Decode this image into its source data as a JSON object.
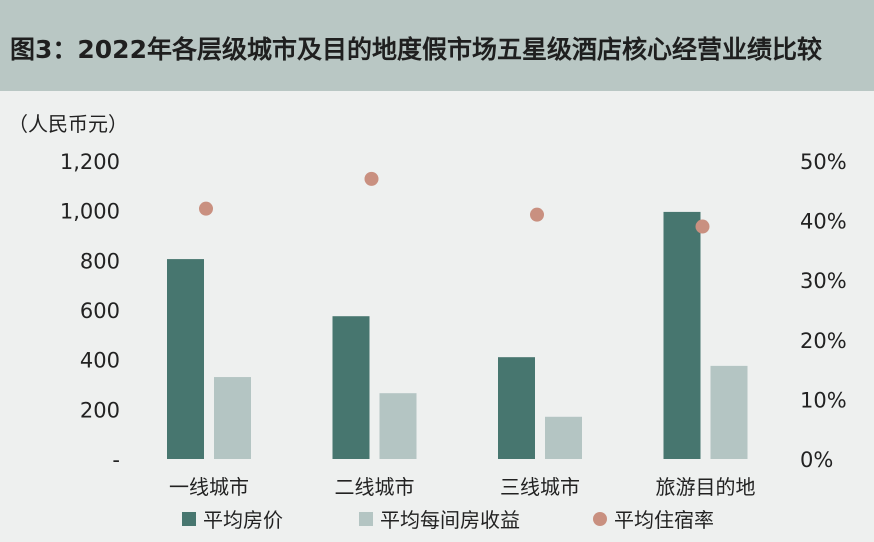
{
  "title": "图3：2022年各层级城市及目的地度假市场五星级酒店核心经营业绩比较",
  "unit_label": "（人民币元）",
  "chart_data": {
    "type": "bar",
    "categories": [
      "一线城市",
      "二线城市",
      "三线城市",
      "旅游目的地"
    ],
    "series": [
      {
        "name": "平均房价",
        "type": "bar",
        "axis": "left",
        "color": "#47766f",
        "values": [
          805,
          575,
          410,
          995
        ]
      },
      {
        "name": "平均每间房收益",
        "type": "bar",
        "axis": "left",
        "color": "#b4c5c3",
        "values": [
          330,
          265,
          170,
          375
        ]
      },
      {
        "name": "平均住宿率",
        "type": "scatter",
        "axis": "right",
        "color": "#c99080",
        "values": [
          42,
          47,
          41,
          39
        ]
      }
    ],
    "y_left": {
      "ticks": [
        0,
        200,
        400,
        600,
        800,
        1000,
        1200
      ],
      "tick_labels": [
        "-",
        "200",
        "400",
        "600",
        "800",
        "1,000",
        "1,200"
      ],
      "ylim": [
        0,
        1200
      ]
    },
    "y_right": {
      "ticks": [
        0,
        10,
        20,
        30,
        40,
        50
      ],
      "tick_labels": [
        "0%",
        "10%",
        "20%",
        "30%",
        "40%",
        "50%"
      ],
      "ylim": [
        0,
        50
      ]
    },
    "grid": false,
    "legend_position": "bottom"
  }
}
